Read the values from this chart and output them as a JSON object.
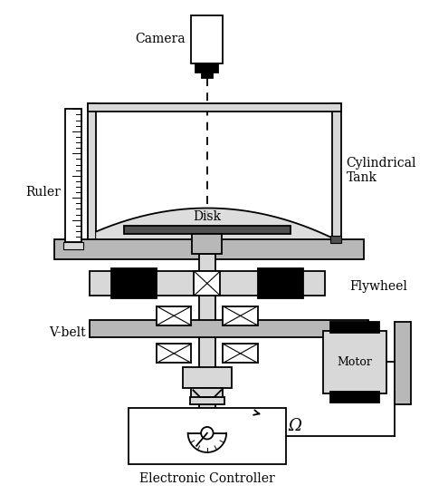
{
  "background_color": "#ffffff",
  "line_color": "#000000",
  "gray_fill": "#b8b8b8",
  "light_gray": "#d8d8d8",
  "dark_gray": "#505050",
  "labels": {
    "camera": "Camera",
    "cylindrical_tank": "Cylindrical\nTank",
    "ruler": "Ruler",
    "disk": "Disk",
    "flywheel": "Flywheel",
    "vbelt": "V-belt",
    "motor": "Motor",
    "controller": "Electronic Controller",
    "omega": "Ω"
  },
  "figsize": [
    4.74,
    5.46
  ],
  "dpi": 100
}
